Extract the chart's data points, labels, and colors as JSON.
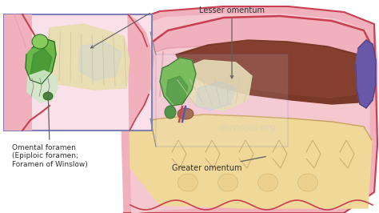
{
  "bg_color": "#ffffff",
  "labels": {
    "lesser_omentum": "Lesser omentum",
    "greater_omentum": "Greater omentum",
    "omental_foramen": "Omental foramen\n(Epiploic foramen;\nForamen of Winslow)"
  },
  "colors": {
    "skin_outer": "#f0b0bc",
    "skin_border": "#c84050",
    "skin_inner": "#f5c8d0",
    "skin_mid": "#e8a0b0",
    "liver": "#7a3828",
    "liver2": "#8b4535",
    "gallbladder_top": "#6ab84a",
    "gallbladder_bot": "#3d8c30",
    "lesser_omentum_fill": "#e8ddb0",
    "lesser_omentum_strand": "#d0c898",
    "lesser_omentum_blue": "#b0c8e0",
    "greater_omentum_fill": "#f0d898",
    "greater_omentum_border": "#c8a060",
    "spleen": "#6858a8",
    "spleen_dark": "#504080",
    "inset_bg": "#fae0e8",
    "inset_border": "#8080b8",
    "zoom_rect": "#6870b0",
    "annotation_line": "#606060",
    "text_color": "#303030",
    "stomach_brown": "#9a6040",
    "vessel_red": "#cc3030",
    "vessel_blue": "#4444aa",
    "watermark": "#d8d8d8",
    "pink_wall": "#e8b0bc",
    "diaphragm": "#e09090"
  }
}
